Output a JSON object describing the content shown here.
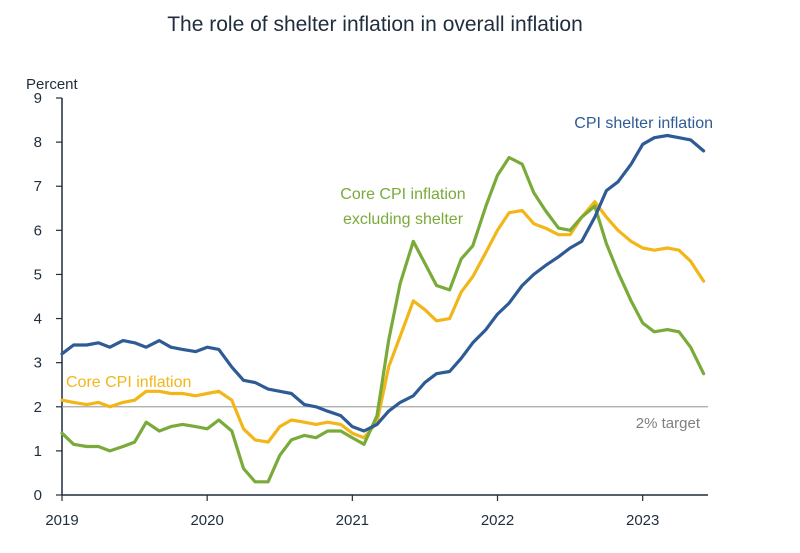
{
  "chart_data": {
    "type": "line",
    "title": "The role of shelter inflation in overall inflation",
    "y_unit_label": "Percent",
    "ylim": [
      0,
      9
    ],
    "y_ticks": [
      "0",
      "1",
      "2",
      "3",
      "4",
      "5",
      "6",
      "7",
      "8",
      "9"
    ],
    "xlim": [
      2019.0,
      2023.45
    ],
    "x_ticks": [
      {
        "value": 2019,
        "label": "2019"
      },
      {
        "value": 2020,
        "label": "2020"
      },
      {
        "value": 2021,
        "label": "2021"
      },
      {
        "value": 2022,
        "label": "2022"
      },
      {
        "value": 2023,
        "label": "2023"
      }
    ],
    "grid": false,
    "reference_line": {
      "y": 2,
      "label": "2% target",
      "color": "#a6a6a6"
    },
    "series": [
      {
        "name": "CPI shelter inflation",
        "color": "#2e5b95",
        "x": [
          2019.0,
          2019.08,
          2019.17,
          2019.25,
          2019.33,
          2019.42,
          2019.5,
          2019.58,
          2019.67,
          2019.75,
          2019.83,
          2019.92,
          2020.0,
          2020.08,
          2020.17,
          2020.25,
          2020.33,
          2020.42,
          2020.5,
          2020.58,
          2020.67,
          2020.75,
          2020.83,
          2020.92,
          2021.0,
          2021.08,
          2021.17,
          2021.25,
          2021.33,
          2021.42,
          2021.5,
          2021.58,
          2021.67,
          2021.75,
          2021.83,
          2021.92,
          2022.0,
          2022.08,
          2022.17,
          2022.25,
          2022.33,
          2022.42,
          2022.5,
          2022.58,
          2022.67,
          2022.75,
          2022.83,
          2022.92,
          2023.0,
          2023.08,
          2023.17,
          2023.25,
          2023.33,
          2023.42
        ],
        "values": [
          3.2,
          3.4,
          3.4,
          3.45,
          3.35,
          3.5,
          3.45,
          3.35,
          3.5,
          3.35,
          3.3,
          3.25,
          3.35,
          3.3,
          2.9,
          2.6,
          2.55,
          2.4,
          2.35,
          2.3,
          2.05,
          2.0,
          1.9,
          1.8,
          1.55,
          1.45,
          1.6,
          1.9,
          2.1,
          2.25,
          2.55,
          2.75,
          2.8,
          3.1,
          3.45,
          3.75,
          4.1,
          4.35,
          4.75,
          5.0,
          5.2,
          5.4,
          5.6,
          5.75,
          6.3,
          6.9,
          7.1,
          7.5,
          7.95,
          8.1,
          8.15,
          8.1,
          8.05,
          7.8
        ]
      },
      {
        "name": "Core CPI inflation",
        "color": "#f2b619",
        "x": [
          2019.0,
          2019.08,
          2019.17,
          2019.25,
          2019.33,
          2019.42,
          2019.5,
          2019.58,
          2019.67,
          2019.75,
          2019.83,
          2019.92,
          2020.0,
          2020.08,
          2020.17,
          2020.25,
          2020.33,
          2020.42,
          2020.5,
          2020.58,
          2020.67,
          2020.75,
          2020.83,
          2020.92,
          2021.0,
          2021.08,
          2021.17,
          2021.25,
          2021.33,
          2021.42,
          2021.5,
          2021.58,
          2021.67,
          2021.75,
          2021.83,
          2021.92,
          2022.0,
          2022.08,
          2022.17,
          2022.25,
          2022.33,
          2022.42,
          2022.5,
          2022.58,
          2022.67,
          2022.75,
          2022.83,
          2022.92,
          2023.0,
          2023.08,
          2023.17,
          2023.25,
          2023.33,
          2023.42
        ],
        "values": [
          2.15,
          2.1,
          2.05,
          2.1,
          2.0,
          2.1,
          2.15,
          2.35,
          2.35,
          2.3,
          2.3,
          2.25,
          2.3,
          2.35,
          2.15,
          1.5,
          1.25,
          1.2,
          1.55,
          1.7,
          1.65,
          1.6,
          1.65,
          1.6,
          1.4,
          1.3,
          1.65,
          2.9,
          3.6,
          4.4,
          4.2,
          3.95,
          4.0,
          4.6,
          4.95,
          5.5,
          6.0,
          6.4,
          6.45,
          6.15,
          6.05,
          5.9,
          5.9,
          6.3,
          6.65,
          6.3,
          6.0,
          5.75,
          5.6,
          5.55,
          5.6,
          5.55,
          5.3,
          4.85
        ]
      },
      {
        "name": "Core CPI inflation excluding shelter",
        "color": "#7aab3a",
        "x": [
          2019.0,
          2019.08,
          2019.17,
          2019.25,
          2019.33,
          2019.42,
          2019.5,
          2019.58,
          2019.67,
          2019.75,
          2019.83,
          2019.92,
          2020.0,
          2020.08,
          2020.17,
          2020.25,
          2020.33,
          2020.42,
          2020.5,
          2020.58,
          2020.67,
          2020.75,
          2020.83,
          2020.92,
          2021.0,
          2021.08,
          2021.17,
          2021.25,
          2021.33,
          2021.42,
          2021.5,
          2021.58,
          2021.67,
          2021.75,
          2021.83,
          2021.92,
          2022.0,
          2022.08,
          2022.17,
          2022.25,
          2022.33,
          2022.42,
          2022.5,
          2022.58,
          2022.67,
          2022.75,
          2022.83,
          2022.92,
          2023.0,
          2023.08,
          2023.17,
          2023.25,
          2023.33,
          2023.42
        ],
        "values": [
          1.4,
          1.15,
          1.1,
          1.1,
          1.0,
          1.1,
          1.2,
          1.65,
          1.45,
          1.55,
          1.6,
          1.55,
          1.5,
          1.7,
          1.45,
          0.6,
          0.3,
          0.3,
          0.9,
          1.25,
          1.35,
          1.3,
          1.45,
          1.45,
          1.3,
          1.15,
          1.8,
          3.5,
          4.8,
          5.75,
          5.25,
          4.75,
          4.65,
          5.35,
          5.65,
          6.55,
          7.25,
          7.65,
          7.5,
          6.85,
          6.45,
          6.05,
          6.0,
          6.3,
          6.55,
          5.7,
          5.05,
          4.4,
          3.9,
          3.7,
          3.75,
          3.7,
          3.35,
          2.75
        ]
      }
    ],
    "annotations": [
      {
        "series": 0,
        "lines": [
          "CPI shelter inflation"
        ]
      },
      {
        "series": 1,
        "lines": [
          "Core CPI inflation"
        ]
      },
      {
        "series": 2,
        "lines": [
          "Core CPI inflation",
          "excluding shelter"
        ]
      }
    ]
  }
}
